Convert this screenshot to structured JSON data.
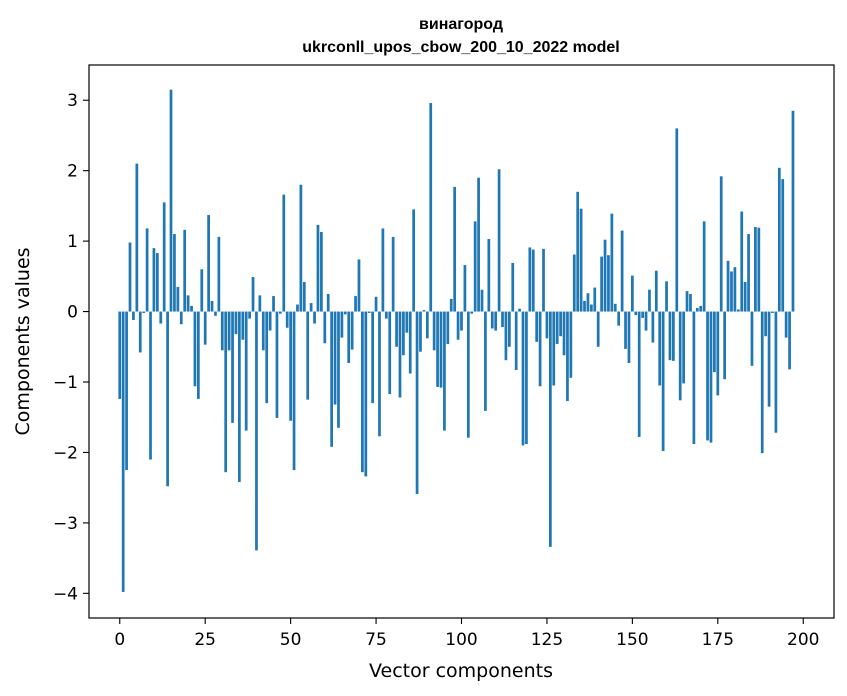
{
  "chart_data": {
    "type": "bar",
    "title": [
      "винагород",
      "ukrconll_upos_cbow_200_10_2022 model"
    ],
    "xlabel": "Vector components",
    "ylabel": "Components values",
    "xlim": [
      -9,
      209
    ],
    "ylim": [
      -4.35,
      3.5
    ],
    "xticks": [
      0,
      25,
      50,
      75,
      100,
      125,
      150,
      175,
      200
    ],
    "yticks": [
      -4,
      -3,
      -2,
      -1,
      0,
      1,
      2,
      3
    ],
    "ytick_labels": [
      "−4",
      "−3",
      "−2",
      "−1",
      "0",
      "1",
      "2",
      "3"
    ],
    "bar_color": "#1f77b4",
    "grid": false,
    "legend": "none",
    "values": [
      -1.24,
      -3.98,
      -2.25,
      0.98,
      -0.12,
      2.1,
      -0.58,
      -0.02,
      1.18,
      -2.1,
      0.9,
      0.83,
      -0.17,
      1.55,
      -2.48,
      3.15,
      1.1,
      0.35,
      -0.18,
      1.16,
      0.23,
      0.08,
      -1.06,
      -1.24,
      0.6,
      -0.47,
      1.37,
      0.15,
      -0.06,
      1.06,
      -0.55,
      -2.28,
      -0.55,
      -1.58,
      -0.32,
      -2.42,
      -0.4,
      -1.69,
      -0.1,
      0.49,
      -3.39,
      0.23,
      -0.55,
      -1.3,
      -0.27,
      0.22,
      -1.51,
      -0.03,
      1.66,
      -0.23,
      -1.55,
      -2.25,
      0.1,
      1.8,
      0.42,
      -1.25,
      0.12,
      -0.17,
      1.23,
      1.13,
      -0.45,
      0.25,
      -1.92,
      -1.32,
      -1.65,
      -0.37,
      -0.04,
      -0.73,
      -0.54,
      0.22,
      0.74,
      -2.28,
      -2.34,
      -0.02,
      -1.3,
      0.21,
      -1.77,
      1.18,
      -0.1,
      -1.17,
      1.06,
      -0.5,
      -1.22,
      -0.62,
      -0.3,
      -0.88,
      1.45,
      -2.59,
      -0.57,
      0.02,
      -0.38,
      2.96,
      -0.55,
      -1.07,
      -1.08,
      -1.69,
      -0.46,
      0.18,
      1.77,
      -0.4,
      -0.27,
      0.66,
      -1.79,
      -0.03,
      1.28,
      1.9,
      0.31,
      -1.41,
      1.03,
      -0.24,
      -0.27,
      2.02,
      -0.22,
      -0.69,
      -0.5,
      0.69,
      -0.83,
      0.04,
      -1.9,
      -1.88,
      0.91,
      0.88,
      -0.43,
      -1.06,
      0.89,
      -0.38,
      -3.34,
      -1.05,
      -0.46,
      -0.35,
      -0.62,
      -1.27,
      -0.94,
      0.81,
      1.7,
      1.46,
      0.15,
      0.26,
      0.1,
      0.34,
      -0.5,
      0.78,
      1.02,
      0.8,
      1.39,
      0.11,
      -0.2,
      1.15,
      -0.53,
      -0.73,
      0.51,
      -0.05,
      -1.78,
      -0.09,
      -0.27,
      0.31,
      -0.44,
      0.58,
      -1.05,
      -1.98,
      0.43,
      -0.69,
      -0.7,
      2.6,
      -1.26,
      -1.02,
      0.29,
      0.25,
      -1.88,
      0.05,
      0.08,
      1.28,
      -1.83,
      -1.86,
      -0.86,
      -1.19,
      1.92,
      -0.96,
      0.72,
      0.57,
      0.63,
      0.03,
      1.42,
      0.42,
      1.1,
      -0.77,
      1.2,
      1.19,
      -2.01,
      -0.35,
      -1.35,
      -0.02,
      -1.72,
      2.04,
      1.88,
      -0.37,
      -0.82,
      2.85
    ]
  }
}
